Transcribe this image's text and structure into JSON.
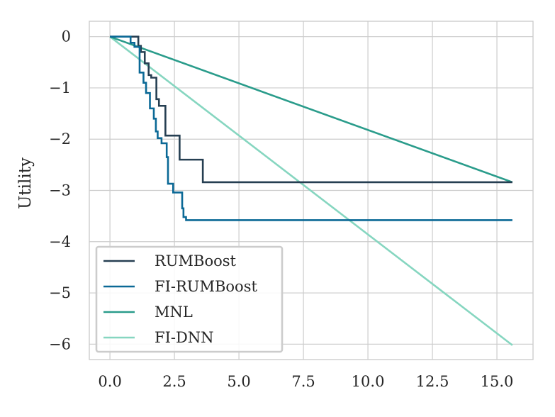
{
  "chart_data": {
    "type": "line",
    "title": "",
    "xlabel": "",
    "ylabel": "Utility",
    "xlim": [
      -0.8,
      16.4
    ],
    "ylim": [
      -6.3,
      0.3
    ],
    "x_ticks": [
      {
        "value": 0.0,
        "label": "0.0"
      },
      {
        "value": 2.5,
        "label": "2.5"
      },
      {
        "value": 5.0,
        "label": "5.0"
      },
      {
        "value": 7.5,
        "label": "7.5"
      },
      {
        "value": 10.0,
        "label": "10.0"
      },
      {
        "value": 12.5,
        "label": "12.5"
      },
      {
        "value": 15.0,
        "label": "15.0"
      }
    ],
    "y_ticks": [
      {
        "value": 0,
        "label": "0"
      },
      {
        "value": -1,
        "label": "−1"
      },
      {
        "value": -2,
        "label": "−2"
      },
      {
        "value": -3,
        "label": "−3"
      },
      {
        "value": -4,
        "label": "−4"
      },
      {
        "value": -5,
        "label": "−5"
      },
      {
        "value": -6,
        "label": "−6"
      }
    ],
    "grid": true,
    "legend": {
      "position": "bottom-left"
    },
    "series": [
      {
        "name": "RUMBoost",
        "color": "#263f52",
        "step": true,
        "x": [
          0,
          1.1,
          1.2,
          1.35,
          1.5,
          1.6,
          1.8,
          1.9,
          2.15,
          2.7,
          3.6,
          15.6
        ],
        "y": [
          0,
          -0.18,
          -0.3,
          -0.52,
          -0.75,
          -0.8,
          -1.22,
          -1.35,
          -1.93,
          -2.4,
          -2.84,
          -2.84
        ]
      },
      {
        "name": "FI-RUMBoost",
        "color": "#0b6996",
        "step": true,
        "x": [
          0,
          0.8,
          0.95,
          1.15,
          1.3,
          1.4,
          1.55,
          1.7,
          1.78,
          1.85,
          2.0,
          2.2,
          2.25,
          2.45,
          2.8,
          2.85,
          2.95,
          15.6
        ],
        "y": [
          0,
          -0.12,
          -0.2,
          -0.7,
          -0.9,
          -1.1,
          -1.4,
          -1.6,
          -1.85,
          -1.98,
          -2.08,
          -2.35,
          -2.87,
          -3.04,
          -3.35,
          -3.52,
          -3.58,
          -3.58
        ]
      },
      {
        "name": "MNL",
        "color": "#2a9c8b",
        "step": false,
        "x": [
          0,
          15.6
        ],
        "y": [
          0,
          -2.84
        ]
      },
      {
        "name": "FI-DNN",
        "color": "#86d6c0",
        "step": false,
        "x": [
          0,
          15.6
        ],
        "y": [
          0,
          -6.02
        ]
      }
    ]
  }
}
